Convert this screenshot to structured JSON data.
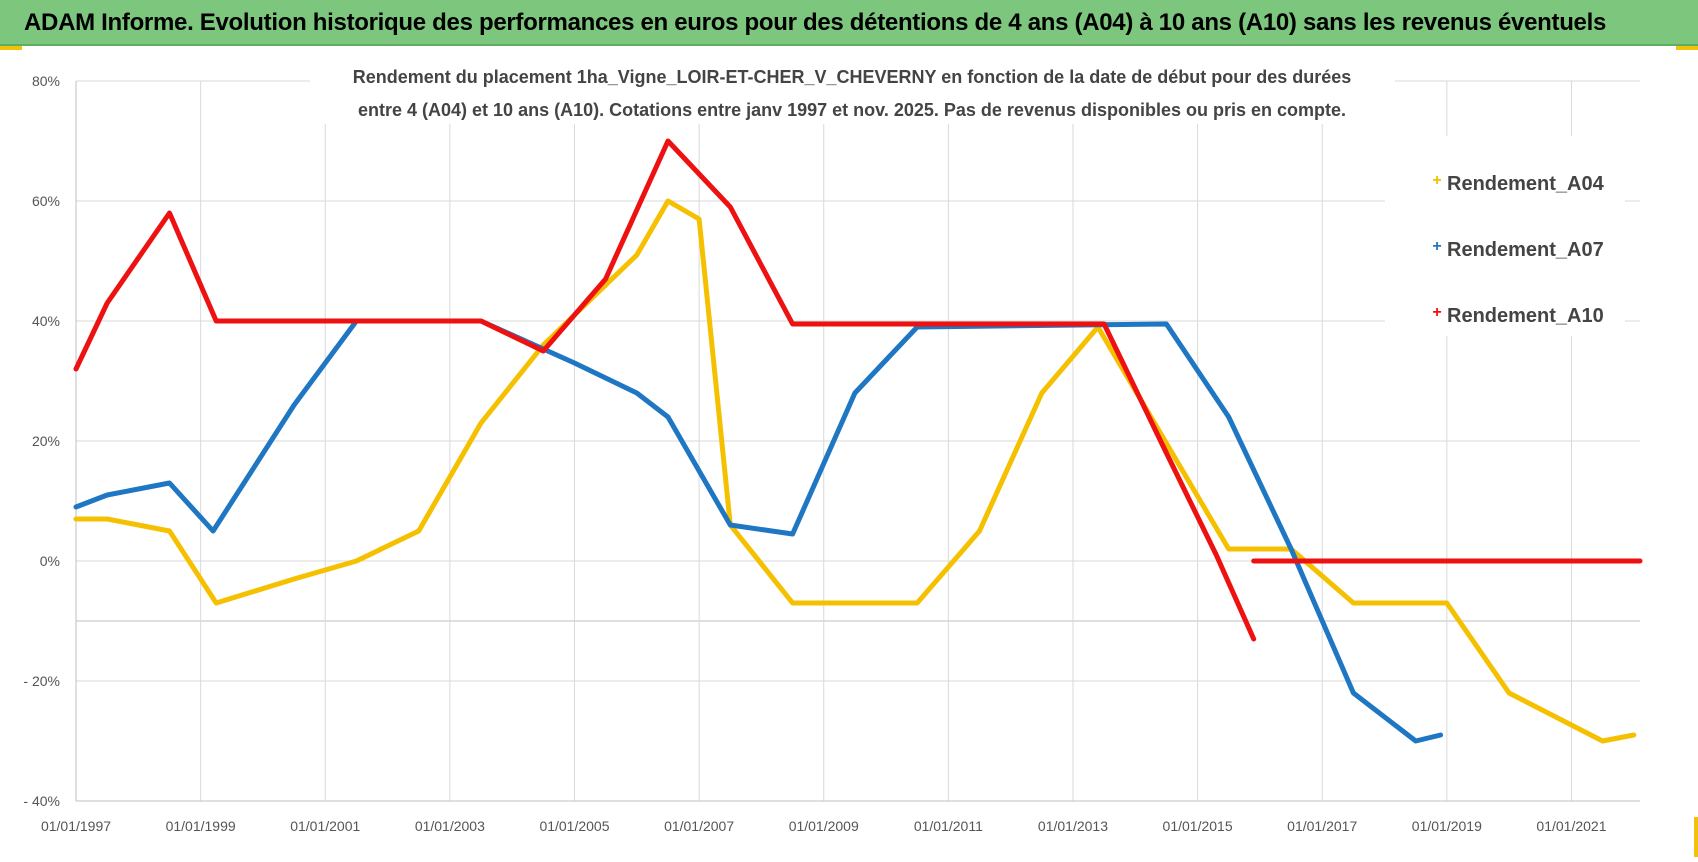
{
  "header": {
    "banner_title": "ADAM Informe. Evolution historique des performances en euros pour des détentions de 4 ans (A04) à 10 ans (A10) sans les revenus éventuels"
  },
  "chart_data": {
    "type": "line",
    "title_lines": [
      "Rendement du placement 1ha_Vigne_LOIR-ET-CHER_V_CHEVERNY en fonction de la date de début pour des durées",
      "entre 4 (A04) et 10 ans (A10).  Cotations entre janv 1997 et nov. 2025. Pas de revenus disponibles ou pris en compte."
    ],
    "xlabel": "",
    "ylabel": "",
    "x_ticks": [
      "01/01/1997",
      "01/01/1999",
      "01/01/2001",
      "01/01/2003",
      "01/01/2005",
      "01/01/2007",
      "01/01/2009",
      "01/01/2011",
      "01/01/2013",
      "01/01/2015",
      "01/01/2017",
      "01/01/2019",
      "01/01/2021"
    ],
    "x_range": [
      1997.0,
      2022.1
    ],
    "y_ticks": [
      "80%",
      "60%",
      "40%",
      "20%",
      "0%",
      "- 20%",
      "- 40%"
    ],
    "y_tick_values": [
      80,
      60,
      40,
      20,
      0,
      -20,
      -40
    ],
    "ylim": [
      -40,
      80
    ],
    "grid": true,
    "legend_position": "right",
    "series": [
      {
        "name": "Rendement_A04",
        "color": "#f5c000",
        "points": [
          [
            1997.0,
            7
          ],
          [
            1997.5,
            7
          ],
          [
            1998.5,
            5
          ],
          [
            1999.25,
            -7
          ],
          [
            2000.5,
            -3
          ],
          [
            2001.5,
            0
          ],
          [
            2002.5,
            5
          ],
          [
            2003.5,
            23
          ],
          [
            2004.5,
            36
          ],
          [
            2006.0,
            51
          ],
          [
            2006.5,
            60
          ],
          [
            2007.0,
            57
          ],
          [
            2007.5,
            6
          ],
          [
            2008.5,
            -7
          ],
          [
            2010.5,
            -7
          ],
          [
            2011.5,
            5
          ],
          [
            2012.5,
            28
          ],
          [
            2013.4,
            39
          ],
          [
            2015.5,
            2
          ],
          [
            2016.5,
            2
          ],
          [
            2017.5,
            -7
          ],
          [
            2019.0,
            -7
          ],
          [
            2020.0,
            -22
          ],
          [
            2021.5,
            -30
          ],
          [
            2022.0,
            -29
          ]
        ]
      },
      {
        "name": "Rendement_A07",
        "color": "#1f77c4",
        "points": [
          [
            1997.0,
            9
          ],
          [
            1997.5,
            11
          ],
          [
            1998.5,
            13
          ],
          [
            1999.2,
            5
          ],
          [
            2000.5,
            26
          ],
          [
            2001.5,
            40
          ],
          [
            2003.5,
            40
          ],
          [
            2005.0,
            33
          ],
          [
            2006.0,
            28
          ],
          [
            2006.5,
            24
          ],
          [
            2007.5,
            6
          ],
          [
            2008.5,
            4.5
          ],
          [
            2009.5,
            28
          ],
          [
            2010.5,
            39
          ],
          [
            2014.5,
            39.5
          ],
          [
            2015.5,
            24
          ],
          [
            2016.5,
            2
          ],
          [
            2017.5,
            -22
          ],
          [
            2018.5,
            -30
          ],
          [
            2018.9,
            -29
          ]
        ]
      },
      {
        "name": "Rendement_A10",
        "color": "#ee1111",
        "points": [
          [
            1997.0,
            32
          ],
          [
            1997.5,
            43
          ],
          [
            1998.5,
            58
          ],
          [
            1999.25,
            40
          ],
          [
            2003.5,
            40
          ],
          [
            2004.5,
            35
          ],
          [
            2005.5,
            47
          ],
          [
            2006.5,
            70
          ],
          [
            2007.5,
            59
          ],
          [
            2008.5,
            39.5
          ],
          [
            2013.5,
            39.5
          ],
          [
            2014.5,
            18
          ],
          [
            2015.3,
            1
          ],
          [
            2015.9,
            -13
          ],
          [
            2015.9,
            0
          ],
          [
            2022.1,
            0
          ]
        ]
      }
    ]
  }
}
